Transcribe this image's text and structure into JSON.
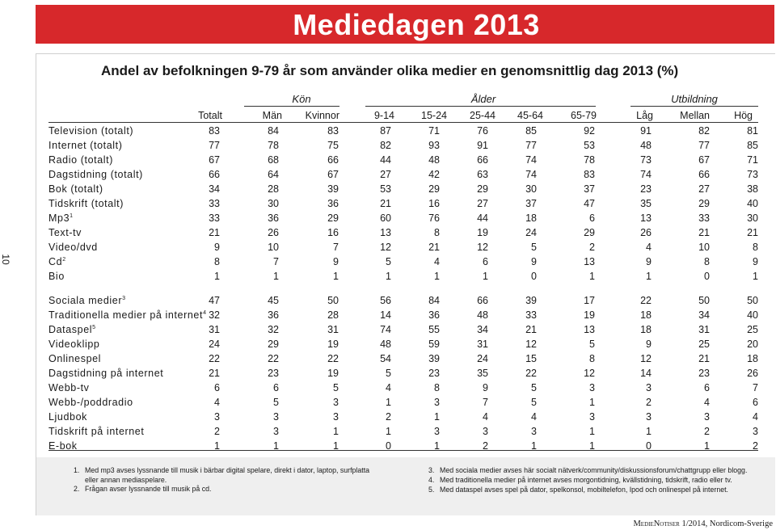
{
  "header": {
    "title": "Mediedagen 2013"
  },
  "page_number": "10",
  "table": {
    "title": "Andel av befolkningen 9-79 år som använder olika medier en genomsnittlig dag 2013 (%)",
    "groups": [
      {
        "label": "Kön"
      },
      {
        "label": "Ålder"
      },
      {
        "label": "Utbildning"
      }
    ],
    "columns": [
      "Totalt",
      "Män",
      "Kvinnor",
      "9-14",
      "15-24",
      "25-44",
      "45-64",
      "65-79",
      "Låg",
      "Mellan",
      "Hög"
    ],
    "rows": [
      {
        "label": "Television (totalt)",
        "note": "",
        "values": [
          "83",
          "84",
          "83",
          "87",
          "71",
          "76",
          "85",
          "92",
          "91",
          "82",
          "81"
        ]
      },
      {
        "label": "Internet (totalt)",
        "note": "",
        "values": [
          "77",
          "78",
          "75",
          "82",
          "93",
          "91",
          "77",
          "53",
          "48",
          "77",
          "85"
        ]
      },
      {
        "label": "Radio (totalt)",
        "note": "",
        "values": [
          "67",
          "68",
          "66",
          "44",
          "48",
          "66",
          "74",
          "78",
          "73",
          "67",
          "71"
        ]
      },
      {
        "label": "Dagstidning (totalt)",
        "note": "",
        "values": [
          "66",
          "64",
          "67",
          "27",
          "42",
          "63",
          "74",
          "83",
          "74",
          "66",
          "73"
        ]
      },
      {
        "label": "Bok (totalt)",
        "note": "",
        "values": [
          "34",
          "28",
          "39",
          "53",
          "29",
          "29",
          "30",
          "37",
          "23",
          "27",
          "38"
        ]
      },
      {
        "label": "Tidskrift (totalt)",
        "note": "",
        "values": [
          "33",
          "30",
          "36",
          "21",
          "16",
          "27",
          "37",
          "47",
          "35",
          "29",
          "40"
        ]
      },
      {
        "label": "Mp3",
        "note": "1",
        "values": [
          "33",
          "36",
          "29",
          "60",
          "76",
          "44",
          "18",
          "6",
          "13",
          "33",
          "30"
        ]
      },
      {
        "label": "Text-tv",
        "note": "",
        "values": [
          "21",
          "26",
          "16",
          "13",
          "8",
          "19",
          "24",
          "29",
          "26",
          "21",
          "21"
        ]
      },
      {
        "label": "Video/dvd",
        "note": "",
        "values": [
          "9",
          "10",
          "7",
          "12",
          "21",
          "12",
          "5",
          "2",
          "4",
          "10",
          "8"
        ]
      },
      {
        "label": "Cd",
        "note": "2",
        "values": [
          "8",
          "7",
          "9",
          "5",
          "4",
          "6",
          "9",
          "13",
          "9",
          "8",
          "9"
        ]
      },
      {
        "label": "Bio",
        "note": "",
        "values": [
          "1",
          "1",
          "1",
          "1",
          "1",
          "1",
          "0",
          "1",
          "1",
          "0",
          "1"
        ]
      },
      {
        "label": "Sociala medier",
        "note": "3",
        "values": [
          "47",
          "45",
          "50",
          "56",
          "84",
          "66",
          "39",
          "17",
          "22",
          "50",
          "50"
        ]
      },
      {
        "label": "Traditionella medier på internet",
        "note": "4",
        "values": [
          "32",
          "36",
          "28",
          "14",
          "36",
          "48",
          "33",
          "19",
          "18",
          "34",
          "40"
        ]
      },
      {
        "label": "Dataspel",
        "note": "5",
        "values": [
          "31",
          "32",
          "31",
          "74",
          "55",
          "34",
          "21",
          "13",
          "18",
          "31",
          "25"
        ]
      },
      {
        "label": "Videoklipp",
        "note": "",
        "values": [
          "24",
          "29",
          "19",
          "48",
          "59",
          "31",
          "12",
          "5",
          "9",
          "25",
          "20"
        ]
      },
      {
        "label": "Onlinespel",
        "note": "",
        "values": [
          "22",
          "22",
          "22",
          "54",
          "39",
          "24",
          "15",
          "8",
          "12",
          "21",
          "18"
        ]
      },
      {
        "label": "Dagstidning på internet",
        "note": "",
        "values": [
          "21",
          "23",
          "19",
          "5",
          "23",
          "35",
          "22",
          "12",
          "14",
          "23",
          "26"
        ]
      },
      {
        "label": "Webb-tv",
        "note": "",
        "values": [
          "6",
          "6",
          "5",
          "4",
          "8",
          "9",
          "5",
          "3",
          "3",
          "6",
          "7"
        ]
      },
      {
        "label": "Webb-/poddradio",
        "note": "",
        "values": [
          "4",
          "5",
          "3",
          "1",
          "3",
          "7",
          "5",
          "1",
          "2",
          "4",
          "6"
        ]
      },
      {
        "label": "Ljudbok",
        "note": "",
        "values": [
          "3",
          "3",
          "3",
          "2",
          "1",
          "4",
          "4",
          "3",
          "3",
          "3",
          "4"
        ]
      },
      {
        "label": "Tidskrift på internet",
        "note": "",
        "values": [
          "2",
          "3",
          "1",
          "1",
          "3",
          "3",
          "3",
          "1",
          "1",
          "2",
          "3"
        ]
      },
      {
        "label": "E-bok",
        "note": "",
        "values": [
          "1",
          "1",
          "1",
          "0",
          "1",
          "2",
          "1",
          "1",
          "0",
          "1",
          "2"
        ]
      }
    ]
  },
  "footnotes": {
    "left": [
      {
        "num": "1.",
        "lines": [
          "Med mp3 avses lyssnande till musik  i bärbar digital spelare, direkt i dator, laptop, surfplatta",
          "eller annan mediaspelare."
        ]
      },
      {
        "num": "2.",
        "lines": [
          "Frågan avser lyssnande till musik på cd."
        ]
      }
    ],
    "right": [
      {
        "num": "3.",
        "lines": [
          "Med sociala medier avses här socialt nätverk/community/diskussionsforum/chattgrupp eller blogg."
        ]
      },
      {
        "num": "4.",
        "lines": [
          "Med traditionella medier på internet avses  morgontidning, kvällstidning, tidskrift, radio eller tv."
        ]
      },
      {
        "num": "5.",
        "lines": [
          "Med dataspel avses spel på dator, spelkonsol, mobiltelefon, Ipod och onlinespel på internet."
        ]
      }
    ]
  },
  "imprint": {
    "series": "MedieNotiser",
    "issue": " 1/2014, Nordicom-Sverige"
  },
  "colors": {
    "banner": "#d7282b",
    "footnote_bg": "#efefef"
  }
}
